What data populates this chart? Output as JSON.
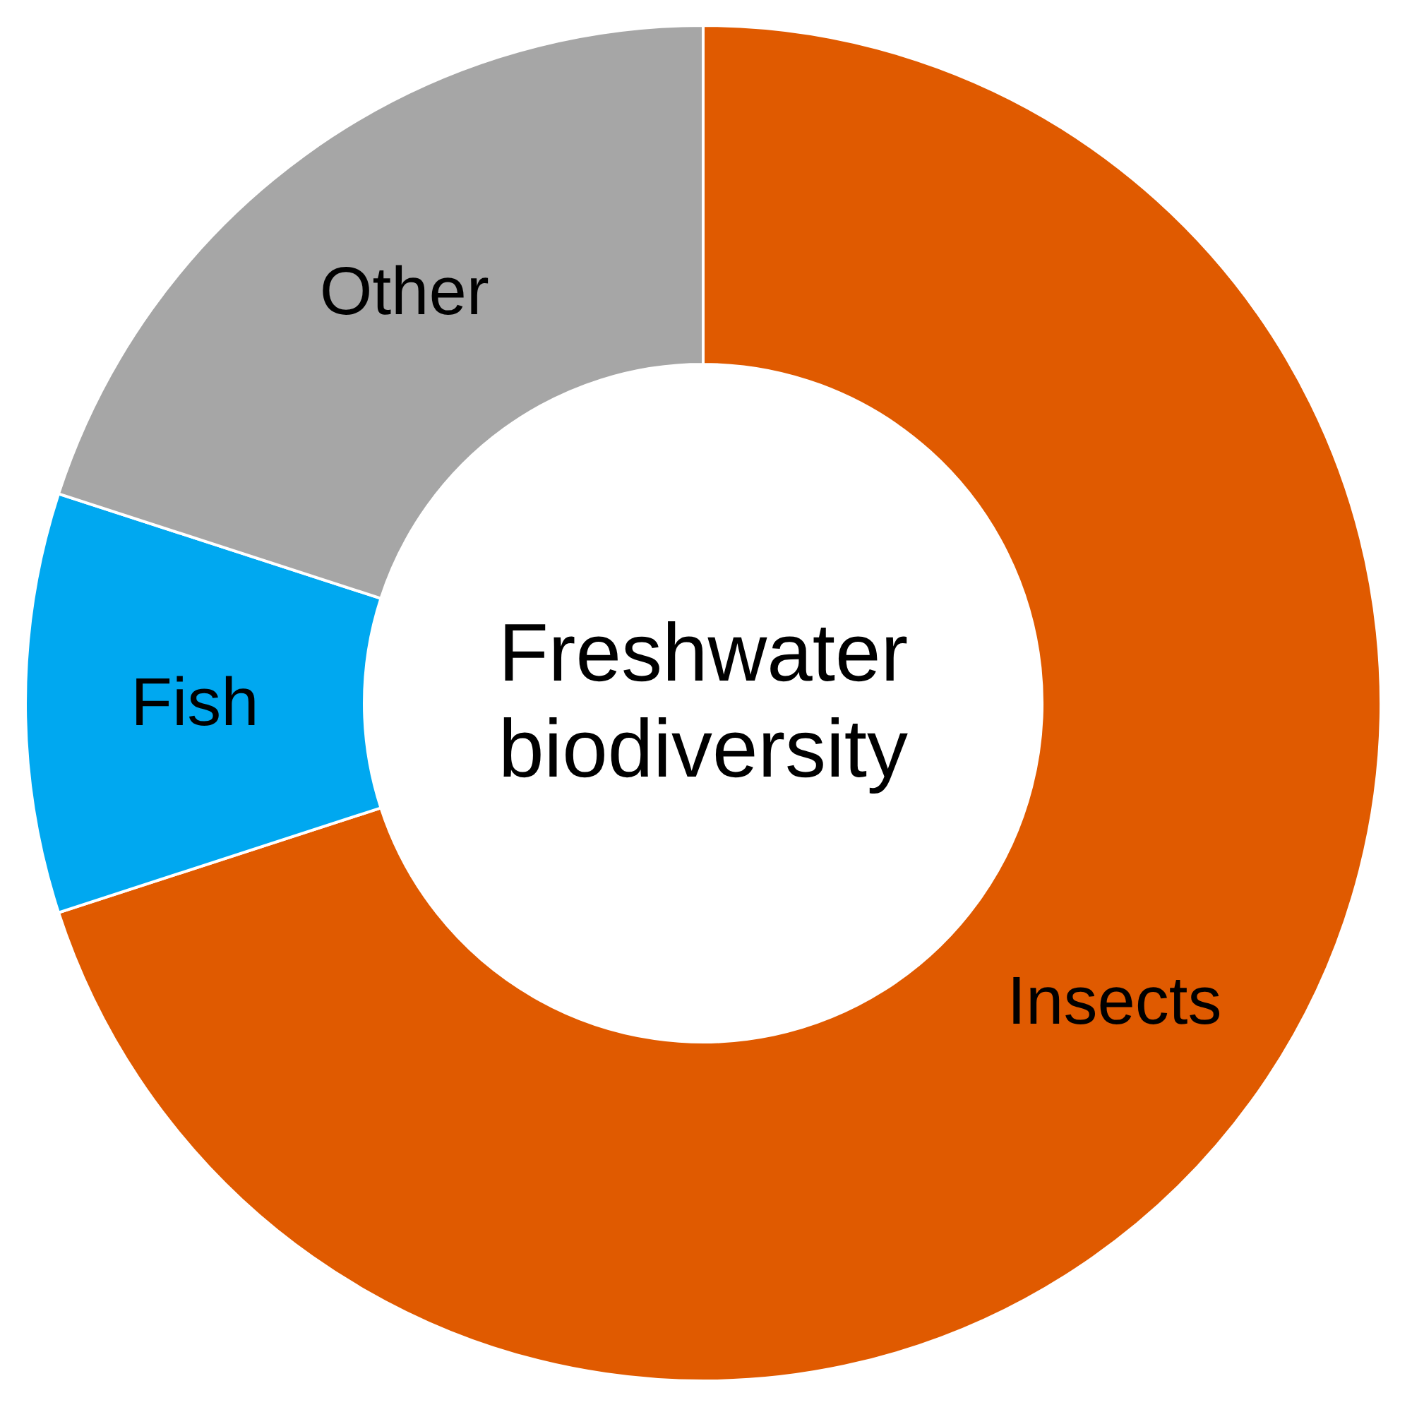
{
  "chart_data": {
    "type": "donut",
    "title": "Freshwater biodiversity",
    "categories": [
      "Insects",
      "Fish",
      "Other"
    ],
    "values": [
      70,
      10,
      20
    ],
    "colors": [
      "#e05a00",
      "#00a8f0",
      "#a6a6a6"
    ]
  }
}
